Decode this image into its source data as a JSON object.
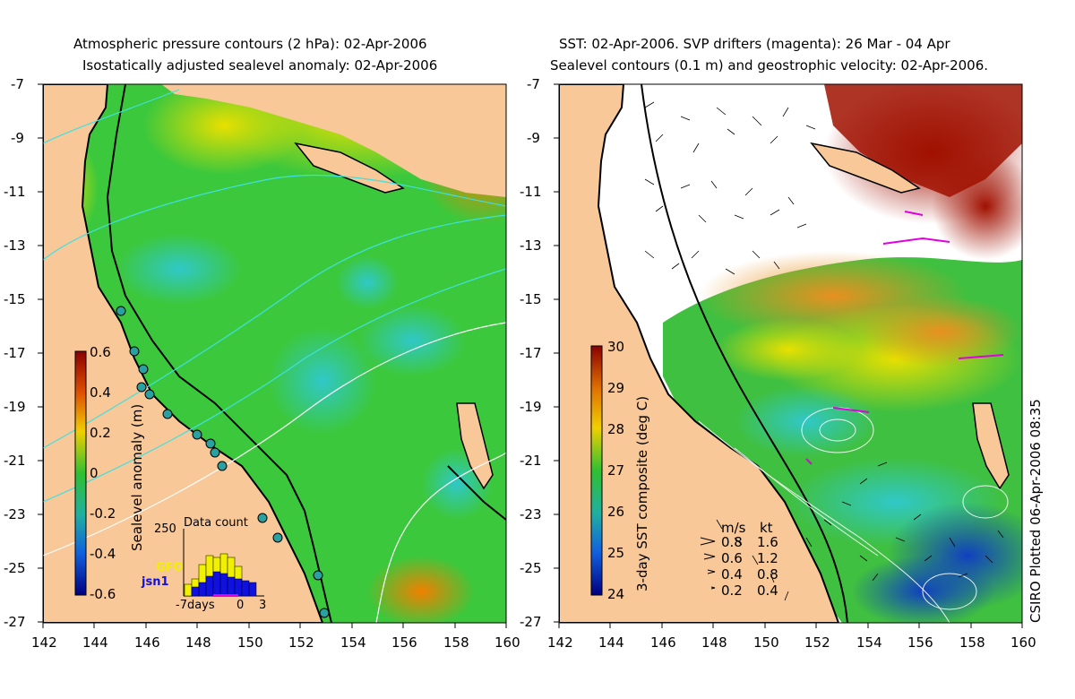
{
  "left_panel": {
    "title_line1": "Atmospheric pressure contours (2 hPa): 02-Apr-2006",
    "title_line2": "Isostatically adjusted sealevel anomaly: 02-Apr-2006",
    "colorbar_label": "Sealevel anomaly (m)",
    "colorbar_ticks": [
      "0.6",
      "0.4",
      "0.2",
      "0",
      "-0.2",
      "-0.4",
      "-0.6"
    ],
    "inset": {
      "title": "Data count",
      "ymax": "250",
      "legend": [
        "GFO",
        "jsn1"
      ],
      "x_ticks": [
        "-7days",
        "0",
        "3"
      ]
    }
  },
  "right_panel": {
    "title_line1": "SST: 02-Apr-2006. SVP drifters (magenta): 26 Mar - 04 Apr",
    "title_line2": "Sealevel contours (0.1 m) and geostrophic velocity: 02-Apr-2006.",
    "colorbar_label": "3-day SST composite (deg C)",
    "colorbar_ticks": [
      "30",
      "29",
      "28",
      "27",
      "26",
      "25",
      "24"
    ],
    "velocity_legend": {
      "header": [
        "m/s",
        "kt"
      ],
      "rows": [
        [
          "0.8",
          "1.6"
        ],
        [
          "0.6",
          "1.2"
        ],
        [
          "0.4",
          "0.8"
        ],
        [
          "0.2",
          "0.4"
        ]
      ]
    }
  },
  "axes": {
    "lat_ticks": [
      "-7",
      "-9",
      "-11",
      "-13",
      "-15",
      "-17",
      "-19",
      "-21",
      "-23",
      "-25",
      "-27"
    ],
    "lon_ticks": [
      "142",
      "144",
      "146",
      "148",
      "150",
      "152",
      "154",
      "156",
      "158",
      "160"
    ]
  },
  "footer": {
    "plotted_stamp": "CSIRO Plotted 06-Apr-2006 08:35"
  },
  "colors": {
    "land": "#f8c898",
    "sla_mid": "#3cc83c",
    "warm": "#c81e00",
    "cloud": "#ffffff"
  }
}
